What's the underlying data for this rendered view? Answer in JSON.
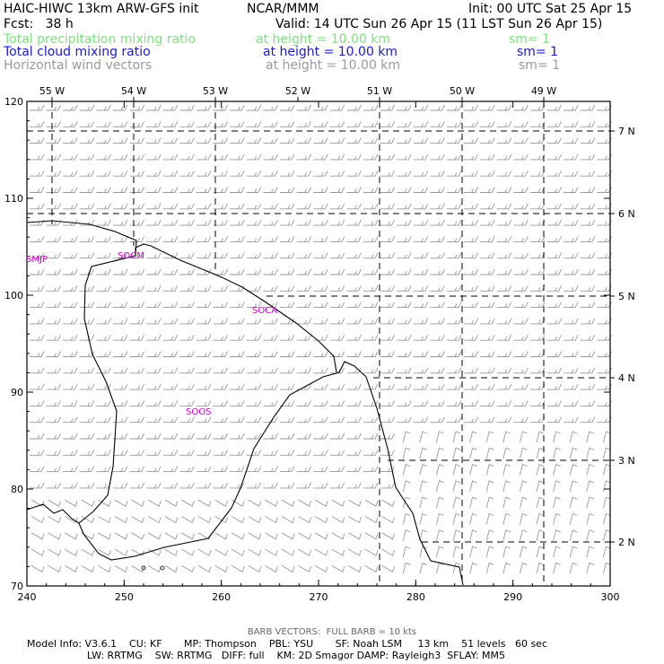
{
  "header": {
    "model": "HAIC-HIWC 13km ARW-GFS init",
    "org": "NCAR/MMM",
    "init": "Init: 00 UTC Sat 25 Apr 15",
    "fcst": "Fcst:   38 h",
    "valid": "Valid: 14 UTC Sun 26 Apr 15 (11 LST Sun 26 Apr 15)",
    "fields": [
      {
        "name": "Total precipitation mixing ratio",
        "height": "at height = 10.00 km",
        "sm": "sm= 1",
        "color": "#7fe07f"
      },
      {
        "name": "Total cloud mixing ratio",
        "height": "at height = 10.00 km",
        "sm": "sm= 1",
        "color": "#1a1acc"
      },
      {
        "name": "Horizontal wind vectors",
        "height": "at height = 10.00 km",
        "sm": "sm= 1",
        "color": "#999999"
      }
    ]
  },
  "map": {
    "x_ticks": [
      "240",
      "250",
      "260",
      "270",
      "280",
      "290",
      "300"
    ],
    "y_ticks": [
      "70",
      "80",
      "90",
      "100",
      "110",
      "120"
    ],
    "lon_labels": [
      "55 W",
      "54 W",
      "53 W",
      "52 W",
      "51 W",
      "50 W",
      "49 W"
    ],
    "lat_labels": [
      "7 N",
      "6 N",
      "5 N",
      "4 N",
      "3 N",
      "2 N"
    ],
    "stations": [
      {
        "id": "SMJP"
      },
      {
        "id": "SOCM"
      },
      {
        "id": "SOCA"
      },
      {
        "id": "SOOS"
      }
    ],
    "station_color": "#cc00cc",
    "barb_color": "#999999",
    "coast_color": "#000000"
  },
  "footer": {
    "barb_note": "BARB VECTORS:  FULL BARB = 10 kts",
    "line1": "Model Info: V3.6.1    CU: KF       MP: Thompson    PBL: YSU       SF: Noah LSM     13 km    51 levels   60 sec",
    "line2": "LW: RRTMG    SW: RRTMG   DIFF: full    KM: 2D Smagor DAMP: Rayleigh3  SFLAY: MM5"
  }
}
